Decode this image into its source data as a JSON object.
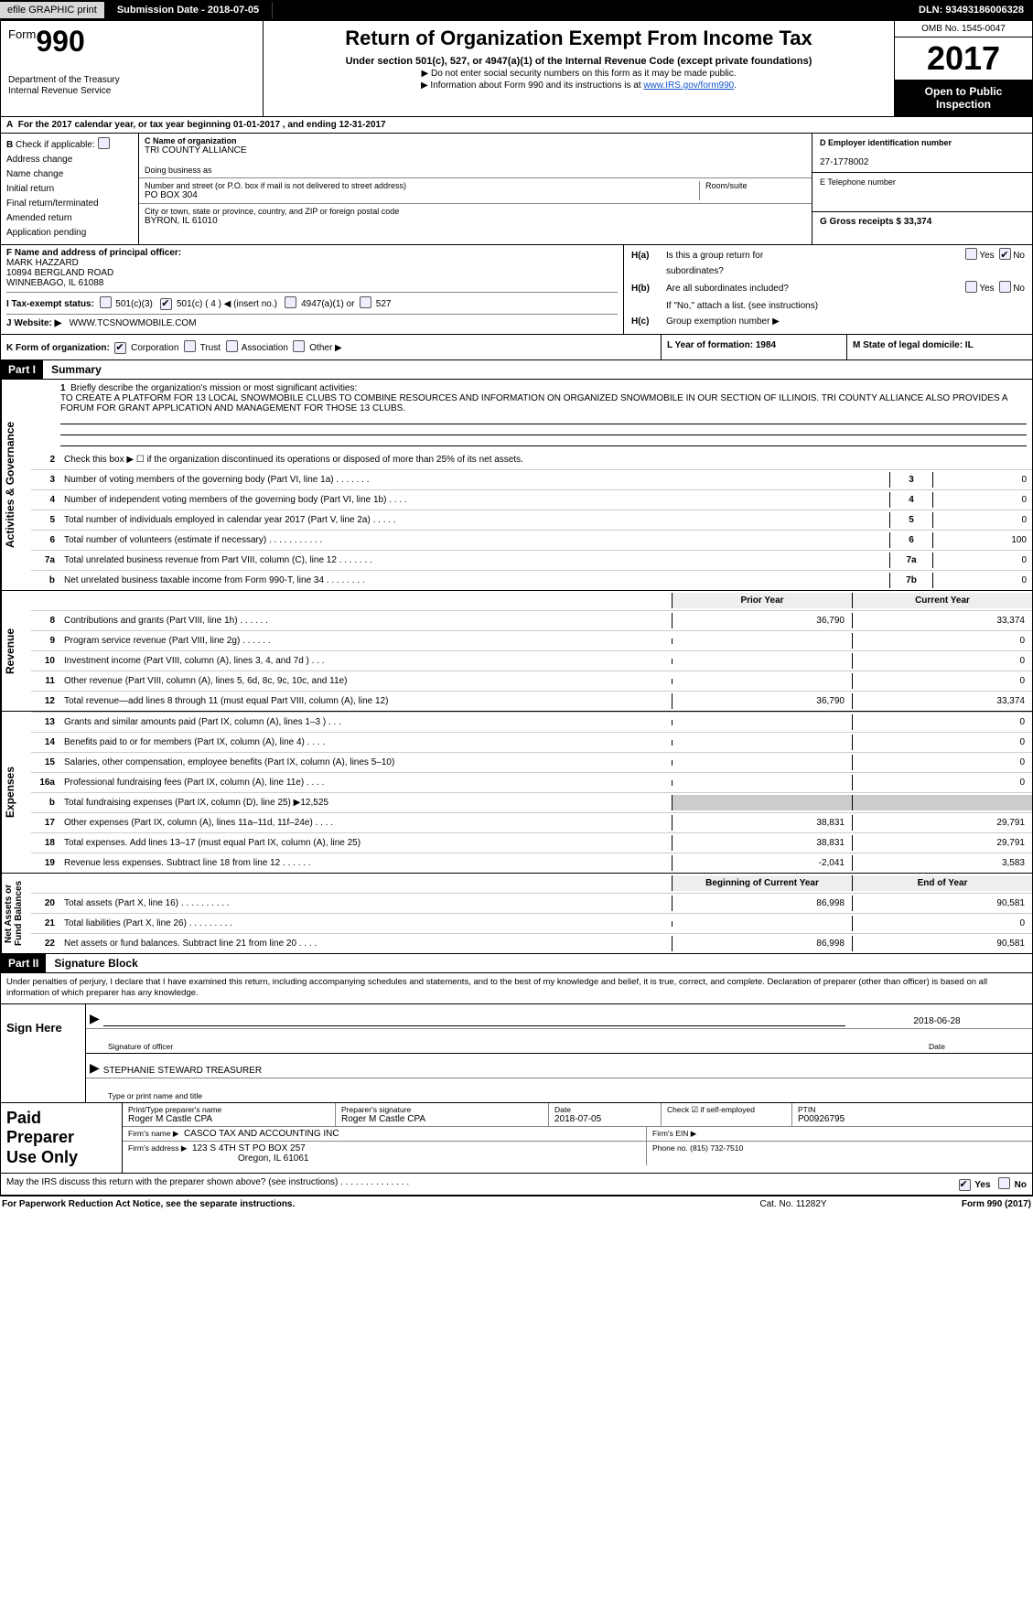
{
  "topbar": {
    "efile": "efile GRAPHIC print",
    "submission_label": "Submission Date - 2018-07-05",
    "dln_label": "DLN: 93493186006328"
  },
  "header": {
    "form_prefix": "Form",
    "form_num": "990",
    "dept": "Department of the Treasury\nInternal Revenue Service",
    "title": "Return of Organization Exempt From Income Tax",
    "subtitle": "Under section 501(c), 527, or 4947(a)(1) of the Internal Revenue Code (except private foundations)",
    "note1": "▶ Do not enter social security numbers on this form as it may be made public.",
    "note2_pre": "▶ Information about Form 990 and its instructions is at ",
    "note2_link": "www.IRS.gov/form990",
    "omb": "OMB No. 1545-0047",
    "year": "2017",
    "open_pub": "Open to Public\nInspection"
  },
  "row_a": "For the 2017 calendar year, or tax year beginning 01-01-2017     , and ending 12-31-2017",
  "col_b": {
    "title": "Check if applicable:",
    "items": [
      "Address change",
      "Name change",
      "Initial return",
      "Final return/terminated",
      "Amended return",
      "Application pending"
    ]
  },
  "col_c": {
    "name_label": "C Name of organization",
    "name": "TRI COUNTY ALLIANCE",
    "dba_label": "Doing business as",
    "dba": "",
    "street_label": "Number and street (or P.O. box if mail is not delivered to street address)",
    "street": "PO BOX 304",
    "room_label": "Room/suite",
    "city_label": "City or town, state or province, country, and ZIP or foreign postal code",
    "city": "BYRON, IL  61010"
  },
  "col_de": {
    "d_label": "D Employer identification number",
    "d_val": "27-1778002",
    "e_label": "E Telephone number",
    "e_val": "",
    "g_label": "G Gross receipts $ 33,374"
  },
  "f_block": {
    "f_label": "F  Name and address of principal officer:",
    "f_name": "MARK HAZZARD",
    "f_street": "10894 BERGLAND ROAD",
    "f_city": "WINNEBAGO, IL  61088",
    "i_label": "I   Tax-exempt status:",
    "i_501c3": "501(c)(3)",
    "i_501c": "501(c) ( 4 ) ◀ (insert no.)",
    "i_4947": "4947(a)(1) or",
    "i_527": "527",
    "j_label": "J   Website: ▶",
    "j_val": "WWW.TCSNOWMOBILE.COM"
  },
  "h_block": {
    "ha_label": "Is this a group return for",
    "ha_label2": "subordinates?",
    "hb_label": "Are all subordinates included?",
    "hb_note": "If \"No,\" attach a list. (see instructions)",
    "hc_label": "Group exemption number ▶",
    "yes": "Yes",
    "no": "No"
  },
  "row_jk": {
    "k_label": "K Form of organization:",
    "k_corp": "Corporation",
    "k_trust": "Trust",
    "k_assoc": "Association",
    "k_other": "Other ▶",
    "l_label": "L Year of formation: 1984",
    "m_label": "M State of legal domicile: IL"
  },
  "part1": {
    "tag": "Part I",
    "title": "Summary",
    "l1_label": "Briefly describe the organization's mission or most significant activities:",
    "l1_text": "TO CREATE A PLATFORM FOR 13 LOCAL SNOWMOBILE CLUBS TO COMBINE RESOURCES AND INFORMATION ON ORGANIZED SNOWMOBILE IN OUR SECTION OF ILLINOIS. TRI COUNTY ALLIANCE ALSO PROVIDES A FORUM FOR GRANT APPLICATION AND MANAGEMENT FOR THOSE 13 CLUBS.",
    "section_a": "Activities & Governance",
    "section_r": "Revenue",
    "section_e": "Expenses",
    "section_n": "Net Assets or\nFund Balances",
    "py": "Prior Year",
    "cy": "Current Year",
    "boy": "Beginning of Current Year",
    "eoy": "End of Year",
    "lines_small": [
      {
        "n": "2",
        "d": "Check this box ▶ ☐ if the organization discontinued its operations or disposed of more than 25% of its net assets."
      },
      {
        "n": "3",
        "d": "Number of voting members of the governing body (Part VI, line 1a)   .    .    .    .    .    .    .",
        "bn": "3",
        "bv": "0"
      },
      {
        "n": "4",
        "d": "Number of independent voting members of the governing body (Part VI, line 1b)   .    .    .    .",
        "bn": "4",
        "bv": "0"
      },
      {
        "n": "5",
        "d": "Total number of individuals employed in calendar year 2017 (Part V, line 2a)   .    .    .    .    .",
        "bn": "5",
        "bv": "0"
      },
      {
        "n": "6",
        "d": "Total number of volunteers (estimate if necessary)   .    .    .    .    .    .    .    .    .    .    .",
        "bn": "6",
        "bv": "100"
      },
      {
        "n": "7a",
        "d": "Total unrelated business revenue from Part VIII, column (C), line 12   .    .    .    .    .    .    .",
        "bn": "7a",
        "bv": "0"
      },
      {
        "n": "b",
        "d": "Net unrelated business taxable income from Form 990-T, line 34   .    .    .    .    .    .    .    .",
        "bn": "7b",
        "bv": "0"
      }
    ],
    "lines_rev": [
      {
        "n": "8",
        "d": "Contributions and grants (Part VIII, line 1h)   .    .    .    .    .    .",
        "py": "36,790",
        "cy": "33,374"
      },
      {
        "n": "9",
        "d": "Program service revenue (Part VIII, line 2g)   .    .    .    .    .    .",
        "py": "",
        "cy": "0"
      },
      {
        "n": "10",
        "d": "Investment income (Part VIII, column (A), lines 3, 4, and 7d )   .    .    .",
        "py": "",
        "cy": "0"
      },
      {
        "n": "11",
        "d": "Other revenue (Part VIII, column (A), lines 5, 6d, 8c, 9c, 10c, and 11e)",
        "py": "",
        "cy": "0"
      },
      {
        "n": "12",
        "d": "Total revenue—add lines 8 through 11 (must equal Part VIII, column (A), line 12)",
        "py": "36,790",
        "cy": "33,374"
      }
    ],
    "lines_exp": [
      {
        "n": "13",
        "d": "Grants and similar amounts paid (Part IX, column (A), lines 1–3 )  .   .   .",
        "py": "",
        "cy": "0"
      },
      {
        "n": "14",
        "d": "Benefits paid to or for members (Part IX, column (A), line 4)  .   .   .   .",
        "py": "",
        "cy": "0"
      },
      {
        "n": "15",
        "d": "Salaries, other compensation, employee benefits (Part IX, column (A), lines 5–10)",
        "py": "",
        "cy": "0"
      },
      {
        "n": "16a",
        "d": "Professional fundraising fees (Part IX, column (A), line 11e)  .   .   .   .",
        "py": "",
        "cy": "0"
      },
      {
        "n": "b",
        "d": "Total fundraising expenses (Part IX, column (D), line 25) ▶12,525",
        "py": "SHADE",
        "cy": "SHADE"
      },
      {
        "n": "17",
        "d": "Other expenses (Part IX, column (A), lines 11a–11d, 11f–24e)  .   .   .   .",
        "py": "38,831",
        "cy": "29,791"
      },
      {
        "n": "18",
        "d": "Total expenses. Add lines 13–17 (must equal Part IX, column (A), line 25)",
        "py": "38,831",
        "cy": "29,791"
      },
      {
        "n": "19",
        "d": "Revenue less expenses. Subtract line 18 from line 12  .   .   .   .   .   .",
        "py": "-2,041",
        "cy": "3,583"
      }
    ],
    "lines_net": [
      {
        "n": "20",
        "d": "Total assets (Part X, line 16)  .    .    .    .    .    .    .    .    .    .",
        "py": "86,998",
        "cy": "90,581"
      },
      {
        "n": "21",
        "d": "Total liabilities (Part X, line 26)  .    .    .    .    .    .    .    .    .",
        "py": "",
        "cy": "0"
      },
      {
        "n": "22",
        "d": "Net assets or fund balances. Subtract line 21 from line 20  .    .    .    .",
        "py": "86,998",
        "cy": "90,581"
      }
    ]
  },
  "part2": {
    "tag": "Part II",
    "title": "Signature Block",
    "pen": "Under penalties of perjury, I declare that I have examined this return, including accompanying schedules and statements, and to the best of my knowledge and belief, it is true, correct, and complete. Declaration of preparer (other than officer) is based on all information of which preparer has any knowledge.",
    "sign_here": "Sign Here",
    "sig_officer": "Signature of officer",
    "sig_date": "2018-06-28",
    "sig_date_lbl": "Date",
    "sig_name": "STEPHANIE STEWARD  TREASURER",
    "sig_name_lbl": "Type or print name and title",
    "paid": "Paid\nPreparer\nUse Only",
    "prep_name_lbl": "Print/Type preparer's name",
    "prep_name": "Roger M Castle CPA",
    "prep_sig_lbl": "Preparer's signature",
    "prep_sig": "Roger M Castle CPA",
    "prep_date_lbl": "Date",
    "prep_date": "2018-07-05",
    "prep_check_lbl": "Check ☑ if self-employed",
    "prep_ptin_lbl": "PTIN",
    "prep_ptin": "P00926795",
    "firm_name_lbl": "Firm's name      ▶",
    "firm_name": "CASCO TAX AND ACCOUNTING INC",
    "firm_ein_lbl": "Firm's EIN ▶",
    "firm_addr_lbl": "Firm's address ▶",
    "firm_addr": "123 S 4TH ST PO BOX 257",
    "firm_city": "Oregon, IL  61061",
    "firm_phone_lbl": "Phone no. (815) 732-7510",
    "discuss": "May the IRS discuss this return with the preparer shown above? (see instructions)   .    .    .    .    .    .    .    .    .    .    .    .    .    .",
    "discuss_yes": "Yes",
    "discuss_no": "No"
  },
  "footer": {
    "pra": "For Paperwork Reduction Act Notice, see the separate instructions.",
    "cat": "Cat. No. 11282Y",
    "form": "Form 990 (2017)"
  }
}
